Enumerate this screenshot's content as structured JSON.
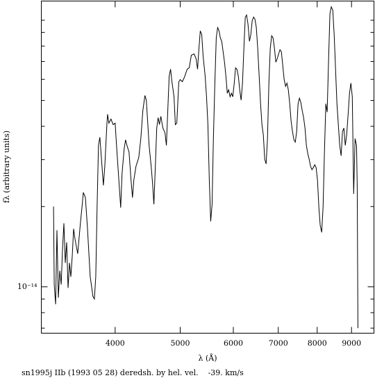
{
  "chart_data": {
    "type": "line",
    "title": "sn1995j IIb (1993 05 28) deredsh. by hel. vel.    -39. km/s",
    "xlabel": "λ (Å)",
    "ylabel": "fλ (arbitrary units)",
    "xscale": "log",
    "yscale": "log",
    "color": "#000000",
    "xlim": [
      3105,
      9720
    ],
    "ylim": [
      6.7e-15,
      1.18e-13
    ],
    "xticks": [
      4000,
      5000,
      6000,
      7000,
      8000,
      9000
    ],
    "yticks": [
      {
        "value": 1e-14,
        "label": "10⁻¹⁴"
      }
    ],
    "yminor": [
      7e-15,
      8e-15,
      9e-15,
      2e-14,
      3e-14,
      4e-14,
      5e-14,
      6e-14,
      7e-14,
      8e-14,
      9e-14,
      1e-13
    ],
    "x": [
      3238,
      3246,
      3261,
      3276,
      3292,
      3308,
      3324,
      3339,
      3355,
      3371,
      3387,
      3403,
      3420,
      3436,
      3452,
      3469,
      3485,
      3518,
      3552,
      3569,
      3586,
      3612,
      3638,
      3672,
      3707,
      3725,
      3743,
      3760,
      3778,
      3796,
      3824,
      3842,
      3860,
      3888,
      3897,
      3915,
      3943,
      3972,
      4000,
      4019,
      4057,
      4077,
      4096,
      4126,
      4145,
      4165,
      4195,
      4224,
      4245,
      4265,
      4296,
      4337,
      4368,
      4399,
      4430,
      4451,
      4472,
      4494,
      4526,
      4548,
      4569,
      4591,
      4613,
      4635,
      4657,
      4679,
      4712,
      4746,
      4769,
      4791,
      4814,
      4837,
      4860,
      4895,
      4918,
      4942,
      4977,
      5000,
      5036,
      5072,
      5121,
      5158,
      5194,
      5244,
      5281,
      5307,
      5332,
      5357,
      5383,
      5408,
      5447,
      5473,
      5499,
      5525,
      5551,
      5578,
      5604,
      5631,
      5658,
      5685,
      5712,
      5739,
      5766,
      5793,
      5821,
      5849,
      5877,
      5904,
      5933,
      5961,
      5989,
      6018,
      6046,
      6075,
      6104,
      6133,
      6162,
      6192,
      6221,
      6251,
      6280,
      6310,
      6341,
      6371,
      6401,
      6432,
      6462,
      6493,
      6524,
      6556,
      6587,
      6619,
      6650,
      6682,
      6714,
      6746,
      6778,
      6811,
      6843,
      6876,
      6909,
      6942,
      6975,
      7008,
      7042,
      7075,
      7109,
      7143,
      7177,
      7211,
      7246,
      7280,
      7315,
      7350,
      7385,
      7420,
      7456,
      7491,
      7527,
      7563,
      7599,
      7635,
      7672,
      7708,
      7745,
      7782,
      7819,
      7857,
      7894,
      7932,
      7970,
      8008,
      8046,
      8084,
      8123,
      8162,
      8201,
      8240,
      8279,
      8319,
      8358,
      8398,
      8439,
      8479,
      8520,
      8560,
      8602,
      8643,
      8684,
      8726,
      8768,
      8810,
      8852,
      8895,
      8938,
      8981,
      9024,
      9067,
      9111,
      9155,
      9177,
      9199
    ],
    "values": [
      2e-14,
      1.02e-14,
      8.6e-15,
      1.63e-14,
      9.1e-15,
      1.15e-14,
      1.02e-14,
      1.38e-14,
      1.73e-14,
      1.23e-14,
      1.47e-14,
      9.9e-15,
      1.23e-14,
      1.09e-14,
      1.3e-14,
      1.65e-14,
      1.51e-14,
      1.33e-14,
      1.76e-14,
      1.98e-14,
      2.26e-14,
      2.16e-14,
      1.65e-14,
      1.09e-14,
      9.2e-15,
      9e-15,
      1.09e-14,
      1.98e-14,
      3.39e-14,
      3.64e-14,
      2.83e-14,
      2.4e-14,
      2.83e-14,
      4.06e-14,
      4.44e-14,
      4.11e-14,
      4.26e-14,
      4.06e-14,
      4.11e-14,
      3.39e-14,
      2.37e-14,
      1.98e-14,
      2.67e-14,
      3.29e-14,
      3.56e-14,
      3.39e-14,
      3.2e-14,
      2.51e-14,
      2.16e-14,
      2.51e-14,
      2.83e-14,
      3.05e-14,
      3.6e-14,
      4.58e-14,
      5.22e-14,
      5.01e-14,
      4.18e-14,
      3.39e-14,
      2.83e-14,
      2.44e-14,
      2.04e-14,
      2.83e-14,
      3.94e-14,
      4.31e-14,
      4.06e-14,
      4.36e-14,
      3.94e-14,
      3.78e-14,
      3.39e-14,
      4.58e-14,
      6.17e-14,
      6.55e-14,
      5.88e-14,
      5.16e-14,
      4.06e-14,
      4.11e-14,
      5.88e-14,
      5.99e-14,
      5.88e-14,
      6.1e-14,
      6.55e-14,
      6.63e-14,
      7.39e-14,
      7.48e-14,
      7.17e-14,
      6.55e-14,
      7.85e-14,
      9.12e-14,
      8.84e-14,
      7.39e-14,
      6.17e-14,
      5.16e-14,
      4.06e-14,
      2.51e-14,
      1.76e-14,
      2.04e-14,
      3.6e-14,
      5.81e-14,
      8.58e-14,
      9.39e-14,
      9.12e-14,
      8.58e-14,
      8.33e-14,
      7.61e-14,
      6.96e-14,
      6.17e-14,
      5.32e-14,
      5.48e-14,
      5.16e-14,
      5.32e-14,
      5.16e-14,
      5.81e-14,
      6.63e-14,
      6.55e-14,
      6.17e-14,
      5.48e-14,
      5.01e-14,
      5.81e-14,
      7.85e-14,
      1.027e-13,
      1.046e-13,
      9.67e-14,
      8.33e-14,
      8.84e-14,
      9.97e-14,
      1.027e-13,
      1.009e-13,
      9.39e-14,
      7.85e-14,
      6.17e-14,
      4.86e-14,
      4.06e-14,
      3.71e-14,
      3.01e-14,
      2.89e-14,
      3.6e-14,
      5.81e-14,
      7.85e-14,
      8.74e-14,
      8.58e-14,
      7.85e-14,
      6.96e-14,
      7.17e-14,
      7.48e-14,
      7.75e-14,
      7.61e-14,
      6.75e-14,
      5.99e-14,
      5.65e-14,
      5.81e-14,
      5.48e-14,
      4.86e-14,
      4.18e-14,
      3.82e-14,
      3.56e-14,
      3.49e-14,
      3.82e-14,
      4.86e-14,
      5.1e-14,
      4.92e-14,
      4.58e-14,
      4.31e-14,
      3.94e-14,
      3.39e-14,
      3.16e-14,
      3.01e-14,
      2.83e-14,
      2.75e-14,
      2.8e-14,
      2.87e-14,
      2.8e-14,
      2.51e-14,
      1.98e-14,
      1.7e-14,
      1.6e-14,
      1.98e-14,
      3.2e-14,
      4.86e-14,
      4.52e-14,
      7.17e-14,
      1.058e-13,
      1.123e-13,
      1.09e-13,
      8.84e-14,
      6.55e-14,
      4.86e-14,
      4.06e-14,
      3.39e-14,
      3.1e-14,
      3.82e-14,
      3.94e-14,
      3.39e-14,
      3.71e-14,
      4.44e-14,
      5.32e-14,
      5.81e-14,
      5.16e-14,
      2.23e-14,
      3.6e-14,
      3.39e-14,
      2.37e-14,
      7e-15
    ]
  }
}
